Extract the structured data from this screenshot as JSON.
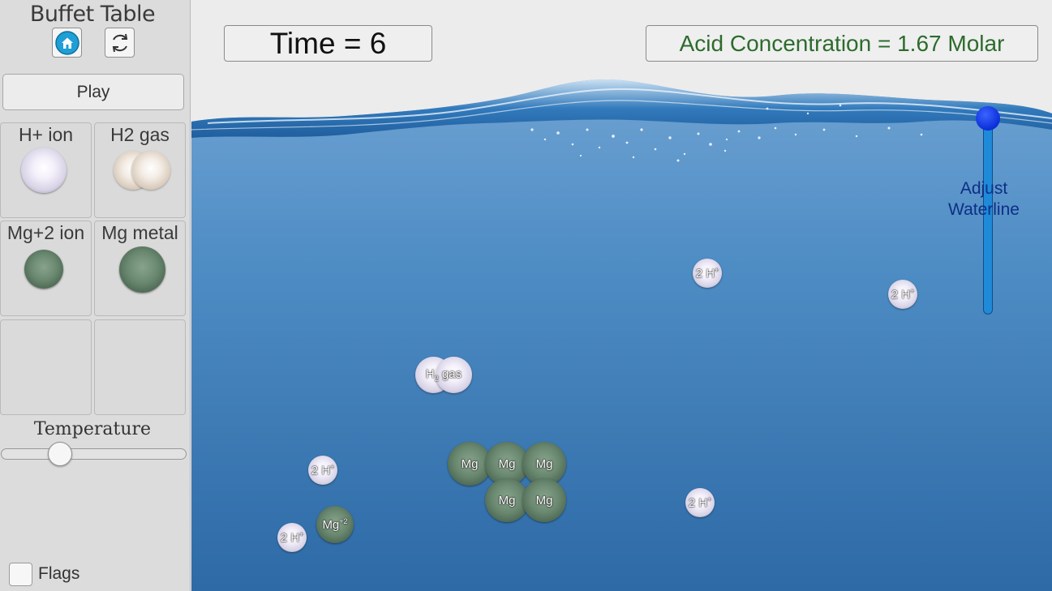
{
  "sidebar": {
    "title": "Buffet Table",
    "play_label": "Play",
    "tiles": [
      {
        "label": "H+ ion",
        "icon": "h-ion-ball"
      },
      {
        "label": "H2 gas",
        "icon": "h2-gas-ball"
      },
      {
        "label": "Mg+2 ion",
        "icon": "mg-ion-ball"
      },
      {
        "label": "Mg metal",
        "icon": "mg-metal-ball"
      }
    ],
    "temperature_label": "Temperature",
    "temperature_level": 0.28,
    "flags_label": "Flags"
  },
  "stage": {
    "time_readout": "Time = 6",
    "acid_readout": "Acid Concentration = 1.67 Molar",
    "waterline_label_1": "Adjust",
    "waterline_label_2": "Waterline",
    "particles": {
      "h_ion_label": "2 H",
      "h_ion_charge": "+",
      "h2_gas_label_a": "H",
      "h2_gas_sub": "2",
      "h2_gas_label_b": "gas",
      "mg_ion_label": "Mg",
      "mg_ion_charge": "+2",
      "mg_metal_label": "Mg"
    }
  },
  "colors": {
    "water": "#4f8fc6",
    "acid_text": "#2d6b2d",
    "waterline_handle": "#0b2fd8",
    "waterline_text": "#0d2f86"
  }
}
